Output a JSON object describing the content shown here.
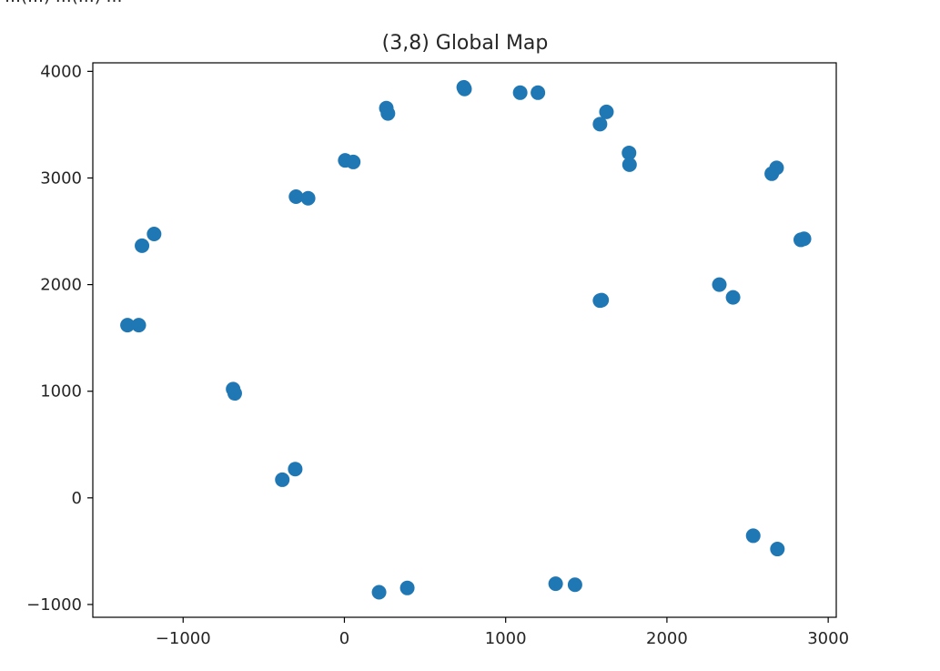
{
  "header_fragment": "…(…) …(…) …",
  "chart_data": {
    "type": "scatter",
    "title": "(3,8) Global Map",
    "xlabel": "",
    "ylabel": "",
    "xlim": [
      -1560,
      3050
    ],
    "ylim": [
      -1120,
      4080
    ],
    "x_ticks": [
      -1000,
      0,
      1000,
      2000,
      3000
    ],
    "x_tick_labels": [
      "−1000",
      "0",
      "1000",
      "2000",
      "3000"
    ],
    "y_ticks": [
      -1000,
      0,
      1000,
      2000,
      3000,
      4000
    ],
    "y_tick_labels": [
      "−1000",
      "0",
      "1000",
      "2000",
      "3000",
      "4000"
    ],
    "grid": false,
    "marker_color": "#1f77b4",
    "series": [
      {
        "points": [
          [
            -1345,
            1620
          ],
          [
            -1275,
            1620
          ],
          [
            -1255,
            2365
          ],
          [
            -1180,
            2475
          ],
          [
            -690,
            1020
          ],
          [
            -680,
            980
          ],
          [
            -385,
            170
          ],
          [
            -305,
            270
          ],
          [
            -300,
            2825
          ],
          [
            -225,
            2810
          ],
          [
            5,
            3165
          ],
          [
            55,
            3150
          ],
          [
            215,
            -885
          ],
          [
            390,
            -845
          ],
          [
            260,
            3655
          ],
          [
            270,
            3605
          ],
          [
            740,
            3850
          ],
          [
            745,
            3835
          ],
          [
            1090,
            3800
          ],
          [
            1200,
            3800
          ],
          [
            1310,
            -805
          ],
          [
            1430,
            -815
          ],
          [
            1585,
            3505
          ],
          [
            1625,
            3620
          ],
          [
            1585,
            1850
          ],
          [
            1595,
            1855
          ],
          [
            1765,
            3235
          ],
          [
            1768,
            3125
          ],
          [
            2325,
            2000
          ],
          [
            2410,
            1880
          ],
          [
            2535,
            -355
          ],
          [
            2685,
            -480
          ],
          [
            2650,
            3040
          ],
          [
            2680,
            3095
          ],
          [
            2830,
            2420
          ],
          [
            2850,
            2430
          ]
        ]
      }
    ]
  }
}
